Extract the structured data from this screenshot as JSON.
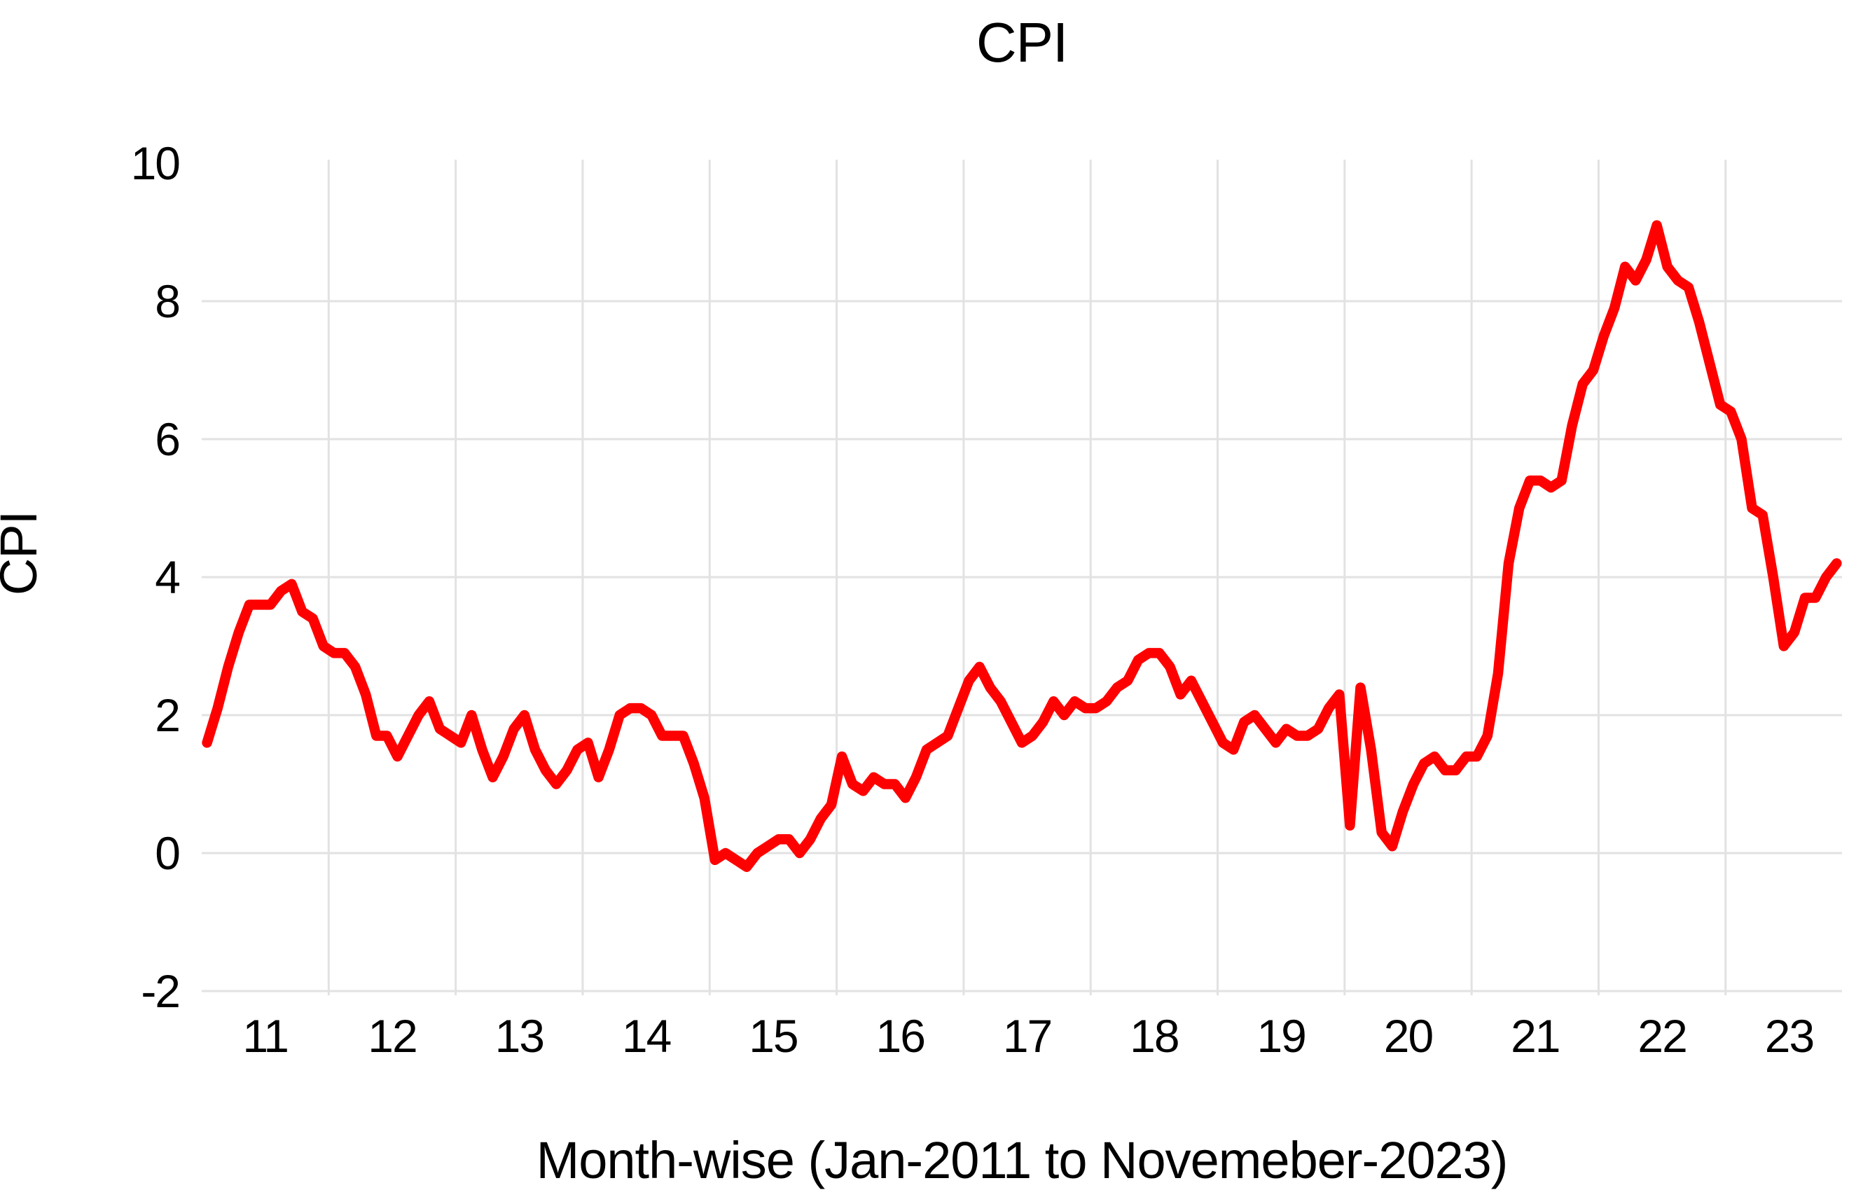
{
  "chart_data": {
    "type": "line",
    "title": "CPI",
    "xlabel": "Month-wise (Jan-2011 to Novemeber-2023)",
    "ylabel": "CPI",
    "ylim": [
      -2,
      10
    ],
    "yticks": [
      -2,
      0,
      2,
      4,
      6,
      8,
      10
    ],
    "xtick_labels": [
      "11",
      "12",
      "13",
      "14",
      "15",
      "16",
      "17",
      "18",
      "19",
      "20",
      "21",
      "22",
      "23"
    ],
    "grid": true,
    "legend_position": "none",
    "frequency": "monthly",
    "range_text": "Jan-2011 to Novemeber-2023",
    "line_color": "#FF0000",
    "gridline_color": "#E2E2E2",
    "text_color": "#000000",
    "background_color": "#FFFFFF",
    "series": [
      {
        "name": "CPI",
        "values_by_year": [
          {
            "year": 2011,
            "values": [
              1.6,
              2.1,
              2.7,
              3.2,
              3.6,
              3.6,
              3.6,
              3.8,
              3.9,
              3.5,
              3.4,
              3.0
            ]
          },
          {
            "year": 2012,
            "values": [
              2.9,
              2.9,
              2.7,
              2.3,
              1.7,
              1.7,
              1.4,
              1.7,
              2.0,
              2.2,
              1.8,
              1.7
            ]
          },
          {
            "year": 2013,
            "values": [
              1.6,
              2.0,
              1.5,
              1.1,
              1.4,
              1.8,
              2.0,
              1.5,
              1.2,
              1.0,
              1.2,
              1.5
            ]
          },
          {
            "year": 2014,
            "values": [
              1.6,
              1.1,
              1.5,
              2.0,
              2.1,
              2.1,
              2.0,
              1.7,
              1.7,
              1.7,
              1.3,
              0.8
            ]
          },
          {
            "year": 2015,
            "values": [
              -0.1,
              0.0,
              -0.1,
              -0.2,
              0.0,
              0.1,
              0.2,
              0.2,
              0.0,
              0.2,
              0.5,
              0.7
            ]
          },
          {
            "year": 2016,
            "values": [
              1.4,
              1.0,
              0.9,
              1.1,
              1.0,
              1.0,
              0.8,
              1.1,
              1.5,
              1.6,
              1.7,
              2.1
            ]
          },
          {
            "year": 2017,
            "values": [
              2.5,
              2.7,
              2.4,
              2.2,
              1.9,
              1.6,
              1.7,
              1.9,
              2.2,
              2.0,
              2.2,
              2.1
            ]
          },
          {
            "year": 2018,
            "values": [
              2.1,
              2.2,
              2.4,
              2.5,
              2.8,
              2.9,
              2.9,
              2.7,
              2.3,
              2.5,
              2.2,
              1.9
            ]
          },
          {
            "year": 2019,
            "values": [
              1.6,
              1.5,
              1.9,
              2.0,
              1.8,
              1.6,
              1.8,
              1.7,
              1.7,
              1.8,
              2.1,
              2.3
            ]
          },
          {
            "year": 2020,
            "values": [
              0.4,
              2.4,
              1.5,
              0.3,
              0.1,
              0.6,
              1.0,
              1.3,
              1.4,
              1.2,
              1.2,
              1.4
            ]
          },
          {
            "year": 2021,
            "values": [
              1.4,
              1.7,
              2.6,
              4.2,
              5.0,
              5.4,
              5.4,
              5.3,
              5.4,
              6.2,
              6.8,
              7.0
            ]
          },
          {
            "year": 2022,
            "values": [
              7.5,
              7.9,
              8.5,
              8.3,
              8.6,
              9.1,
              8.5,
              8.3,
              8.2,
              7.7,
              7.1,
              6.5
            ]
          },
          {
            "year": 2023,
            "values": [
              6.4,
              6.0,
              5.0,
              4.9,
              4.0,
              3.0,
              3.2,
              3.7,
              3.7,
              4.0,
              4.2
            ]
          }
        ]
      }
    ]
  },
  "layout_note": ""
}
